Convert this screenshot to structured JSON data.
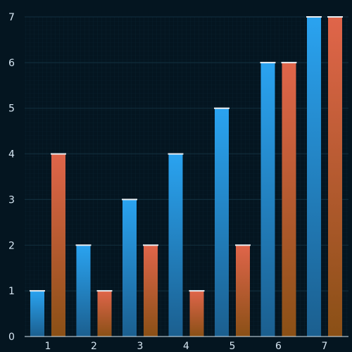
{
  "chart_data": {
    "type": "bar",
    "categories": [
      "1",
      "2",
      "3",
      "4",
      "5",
      "6",
      "7"
    ],
    "series": [
      {
        "values": [
          1,
          2,
          3,
          4,
          5,
          6,
          7
        ]
      },
      {
        "values": [
          4,
          1,
          2,
          1,
          2,
          6,
          7
        ]
      }
    ],
    "ylim": [
      0,
      7
    ],
    "yticks": [
      "0",
      "1",
      "2",
      "3",
      "4",
      "5",
      "6",
      "7"
    ],
    "grid": true,
    "colors": {
      "background": "#041520",
      "grid": "#12303f",
      "series_1_top": "#2aa3f0",
      "series_1_bottom": "#1b5f8f",
      "series_2_top": "#e0654a",
      "series_2_bottom": "#8a5016",
      "cap": "#e9eef2",
      "axis": "#d6e6f2"
    }
  }
}
